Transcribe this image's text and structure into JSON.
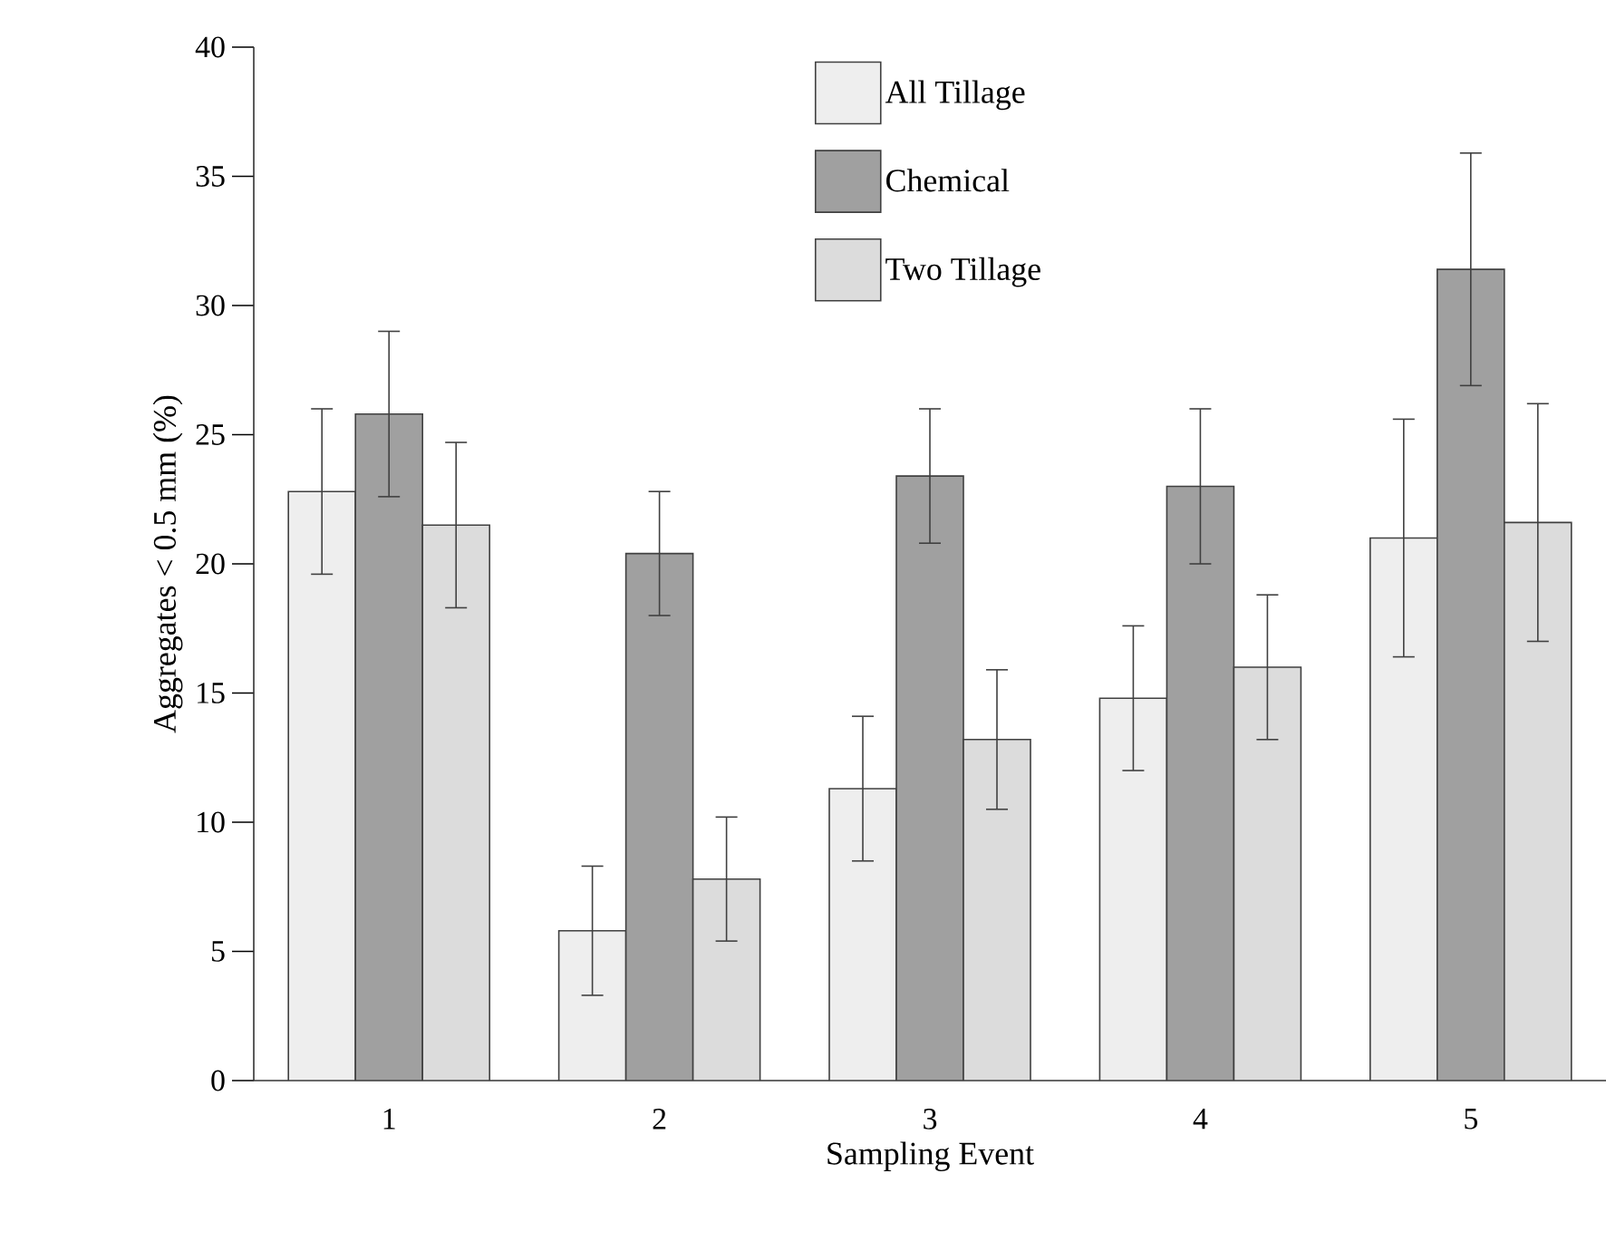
{
  "chart_data": {
    "type": "bar",
    "xlabel": "Sampling Event",
    "ylabel": "Aggregates < 0.5 mm (%)",
    "categories": [
      "1",
      "2",
      "3",
      "4",
      "5"
    ],
    "series": [
      {
        "name": "All Tillage",
        "color": "#eeeeee",
        "values": [
          22.8,
          5.8,
          11.3,
          14.8,
          21.0
        ],
        "errors": [
          3.2,
          2.5,
          2.8,
          2.8,
          4.6
        ]
      },
      {
        "name": "Chemical",
        "color": "#a0a0a0",
        "values": [
          25.8,
          20.4,
          23.4,
          23.0,
          31.4
        ],
        "errors": [
          3.2,
          2.4,
          2.6,
          3.0,
          4.5
        ]
      },
      {
        "name": "Two Tillage",
        "color": "#dcdcdc",
        "values": [
          21.5,
          7.8,
          13.2,
          16.0,
          21.6
        ],
        "errors": [
          3.2,
          2.4,
          2.7,
          2.8,
          4.6
        ]
      }
    ],
    "ylim": [
      0,
      40
    ],
    "yticks": [
      0,
      5,
      10,
      15,
      20,
      25,
      30,
      35,
      40
    ],
    "grid": false,
    "legend": "top"
  }
}
